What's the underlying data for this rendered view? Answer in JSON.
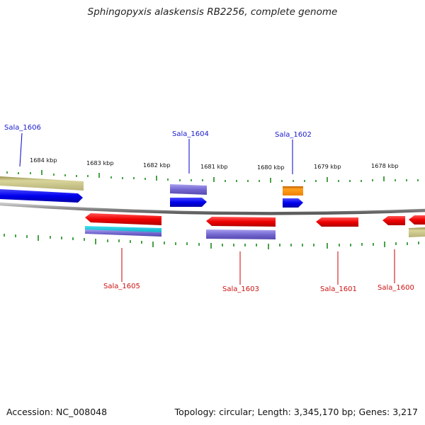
{
  "title": "Sphingopyxis alaskensis RB2256, complete genome",
  "footer": {
    "accession": "Accession: NC_008048",
    "summary": "Topology: circular; Length: 3,345,170 bp; Genes: 3,217"
  },
  "ruler": {
    "ticks": [
      "1684 kbp",
      "1683 kbp",
      "1682 kbp",
      "1681 kbp",
      "1680 kbp",
      "1679 kbp",
      "1678 kbp"
    ]
  },
  "genes": [
    {
      "name": "Sala_1606",
      "strand": "forward",
      "color": "#1a1acc"
    },
    {
      "name": "Sala_1605",
      "strand": "reverse",
      "color": "#cc1111"
    },
    {
      "name": "Sala_1604",
      "strand": "forward",
      "color": "#1a1acc"
    },
    {
      "name": "Sala_1603",
      "strand": "reverse",
      "color": "#cc1111"
    },
    {
      "name": "Sala_1602",
      "strand": "forward",
      "color": "#1a1acc"
    },
    {
      "name": "Sala_1601",
      "strand": "reverse",
      "color": "#cc1111"
    },
    {
      "name": "Sala_1600",
      "strand": "reverse",
      "color": "#cc1111"
    }
  ]
}
